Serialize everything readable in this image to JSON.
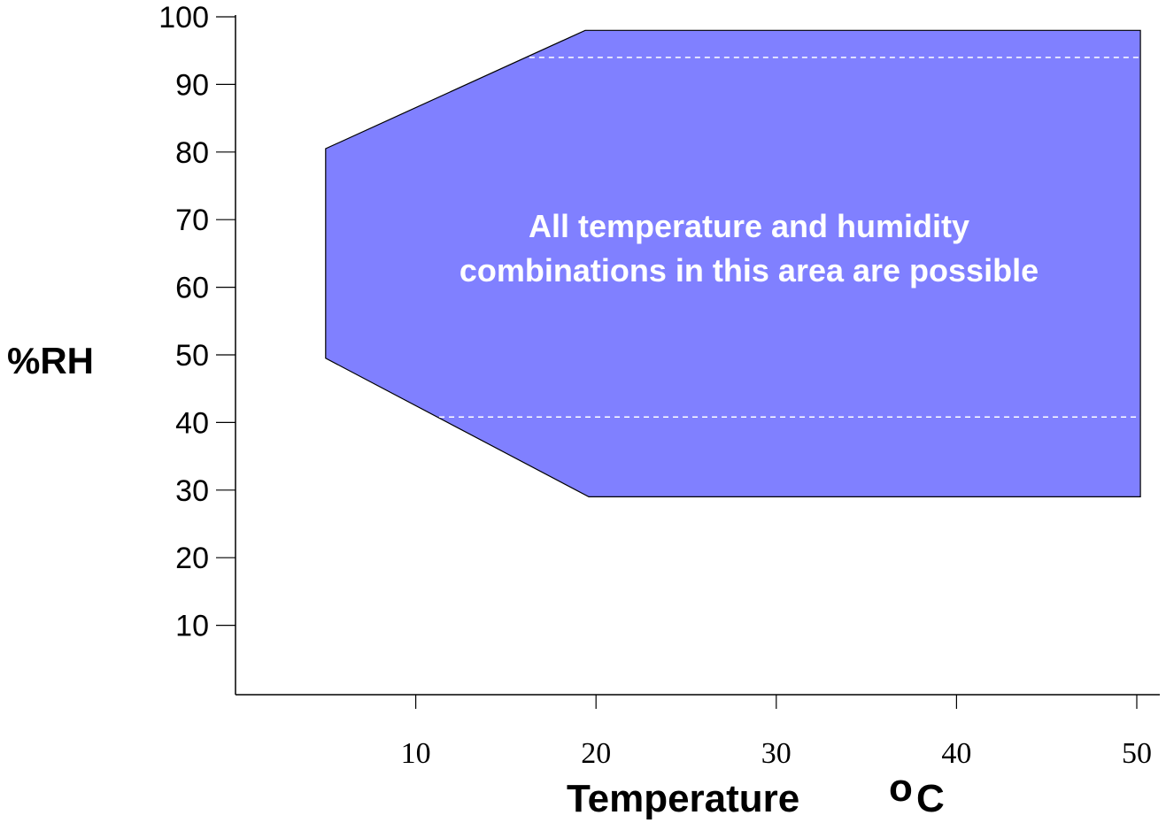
{
  "chart_data": {
    "type": "area",
    "xlabel": "Temperature",
    "xlabel_unit_symbol": "o",
    "xlabel_unit": "C",
    "ylabel": "%RH",
    "x_ticks": [
      10,
      20,
      30,
      40,
      50
    ],
    "y_ticks": [
      10,
      20,
      30,
      40,
      50,
      60,
      70,
      80,
      90,
      100
    ],
    "xlim": [
      0,
      50
    ],
    "ylim": [
      0,
      100
    ],
    "grid": false,
    "region": {
      "fill_color": "#8080ff",
      "outline_color": "#000000",
      "polygon": [
        {
          "x": 5,
          "y": 49.5
        },
        {
          "x": 5,
          "y": 80.5
        },
        {
          "x": 19.4,
          "y": 98
        },
        {
          "x": 50.2,
          "y": 98
        },
        {
          "x": 50.2,
          "y": 29
        },
        {
          "x": 19.6,
          "y": 29
        }
      ]
    },
    "dashed_lines": [
      {
        "y": 94,
        "x_from": 16.3,
        "x_to": 50.2,
        "color": "#ffffff"
      },
      {
        "y": 40.8,
        "x_from": 11.3,
        "x_to": 50.2,
        "color": "#ffffff"
      }
    ],
    "annotation": [
      "All temperature and humidity",
      "combinations in this area are possible"
    ]
  }
}
